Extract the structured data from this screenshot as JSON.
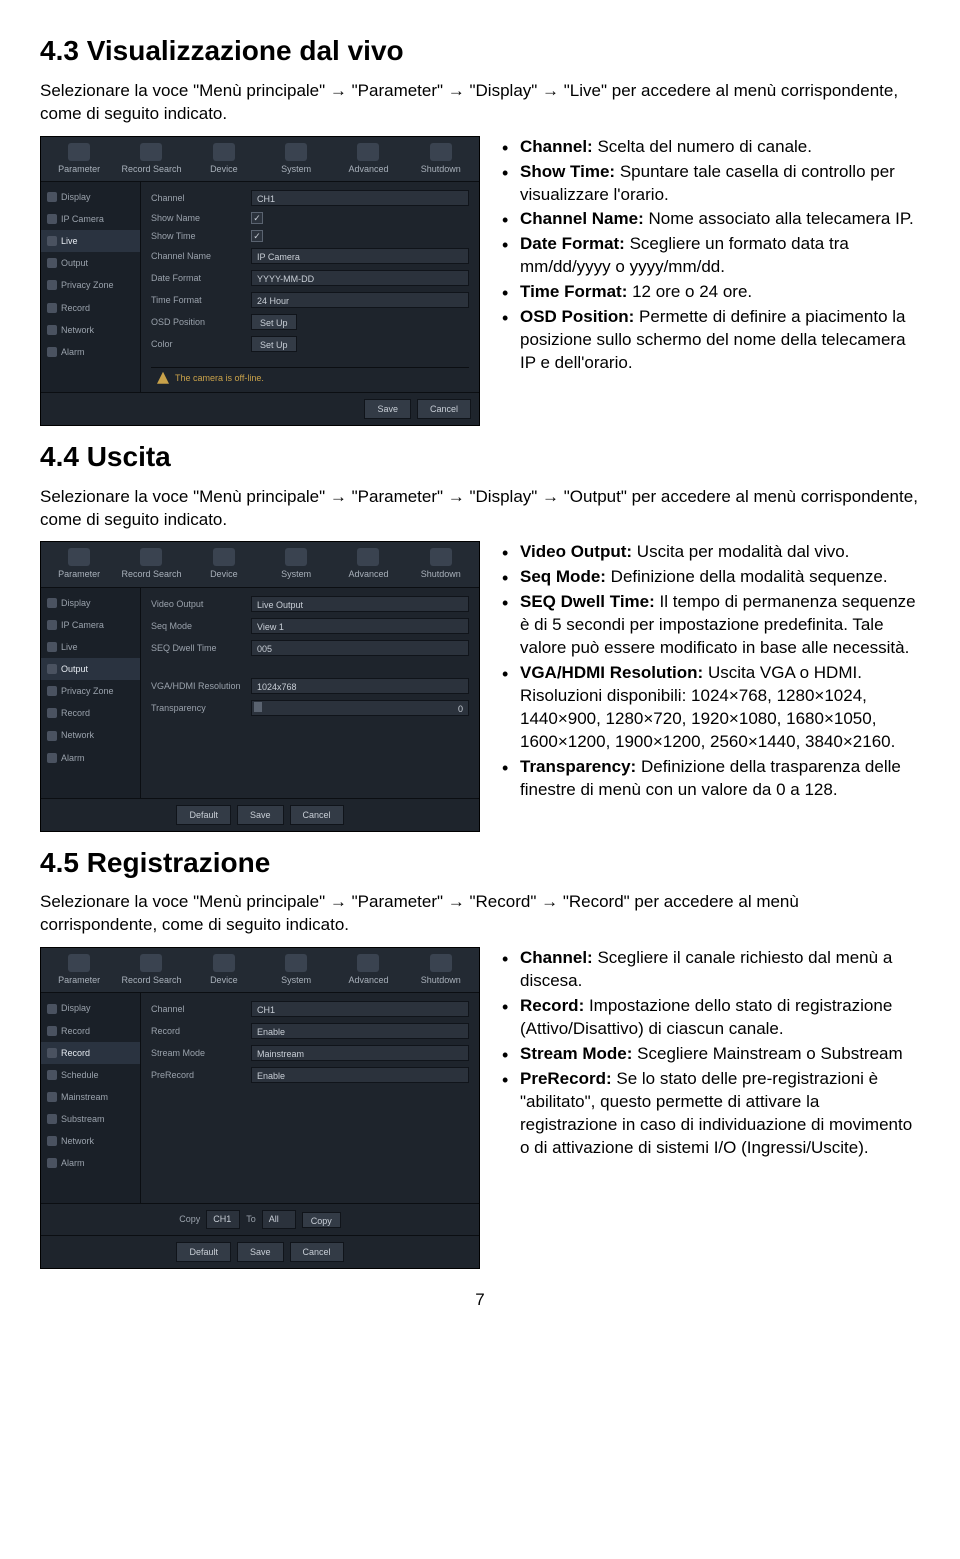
{
  "page_number": "7",
  "sec43": {
    "heading": "4.3 Visualizzazione dal vivo",
    "intro": "Selezionare la voce \"Menù principale\" → \"Parameter\" → \"Display\" → \"Live\" per accedere al menù corrispondente, come di seguito indicato.",
    "bullets": [
      {
        "label": "Channel:",
        "text": " Scelta del numero di canale."
      },
      {
        "label": "Show Time:",
        "text": " Spuntare tale casella di controllo per visualizzare l'orario."
      },
      {
        "label": "Channel Name:",
        "text": " Nome associato alla telecamera IP."
      },
      {
        "label": "Date Format:",
        "text": " Scegliere un formato data tra mm/dd/yyyy o yyyy/mm/dd."
      },
      {
        "label": "Time Format:",
        "text": " 12 ore o 24 ore."
      },
      {
        "label": "OSD Position:",
        "text": " Permette di definire a piacimento la posizione sullo schermo del nome della telecamera IP e dell'orario."
      }
    ],
    "ui": {
      "topbar": [
        "Parameter",
        "Record Search",
        "Device",
        "System",
        "Advanced",
        "Shutdown"
      ],
      "sidebar": [
        {
          "label": "Display",
          "active": false
        },
        {
          "label": "IP Camera",
          "active": false
        },
        {
          "label": "Live",
          "active": true
        },
        {
          "label": "Output",
          "active": false
        },
        {
          "label": "Privacy Zone",
          "active": false
        },
        {
          "label": "Record",
          "active": false
        },
        {
          "label": "Network",
          "active": false
        },
        {
          "label": "Alarm",
          "active": false
        }
      ],
      "rows": [
        {
          "label": "Channel",
          "type": "select",
          "value": "CH1"
        },
        {
          "label": "Show Name",
          "type": "check",
          "checked": true
        },
        {
          "label": "Show Time",
          "type": "check",
          "checked": true
        },
        {
          "label": "Channel Name",
          "type": "input",
          "value": "IP Camera"
        },
        {
          "label": "Date Format",
          "type": "select",
          "value": "YYYY-MM-DD"
        },
        {
          "label": "Time Format",
          "type": "select",
          "value": "24 Hour"
        },
        {
          "label": "OSD Position",
          "type": "button",
          "value": "Set Up"
        },
        {
          "label": "Color",
          "type": "button",
          "value": "Set Up"
        }
      ],
      "status": "The camera is off-line.",
      "footer": [
        "Save",
        "Cancel"
      ]
    }
  },
  "sec44": {
    "heading": "4.4 Uscita",
    "intro": "Selezionare la voce \"Menù principale\" → \"Parameter\" → \"Display\" → \"Output\" per accedere al menù corrispondente, come di seguito indicato.",
    "bullets": [
      {
        "label": "Video Output:",
        "text": " Uscita per modalità dal vivo."
      },
      {
        "label": "Seq Mode:",
        "text": " Definizione della modalità sequenze."
      },
      {
        "label": "SEQ Dwell Time:",
        "text": " Il tempo di permanenza sequenze è di 5 secondi per impostazione predefinita. Tale valore può essere modificato in base alle necessità."
      },
      {
        "label": "VGA/HDMI Resolution:",
        "text": " Uscita VGA o HDMI. Risoluzioni disponibili: 1024×768, 1280×1024, 1440×900, 1280×720, 1920×1080, 1680×1050, 1600×1200, 1900×1200, 2560×1440, 3840×2160."
      },
      {
        "label": "Transparency:",
        "text": " Definizione della trasparenza delle finestre di menù con un valore da 0 a 128."
      }
    ],
    "ui": {
      "topbar": [
        "Parameter",
        "Record Search",
        "Device",
        "System",
        "Advanced",
        "Shutdown"
      ],
      "sidebar": [
        {
          "label": "Display",
          "active": false
        },
        {
          "label": "IP Camera",
          "active": false
        },
        {
          "label": "Live",
          "active": false
        },
        {
          "label": "Output",
          "active": true
        },
        {
          "label": "Privacy Zone",
          "active": false
        },
        {
          "label": "Record",
          "active": false
        },
        {
          "label": "Network",
          "active": false
        },
        {
          "label": "Alarm",
          "active": false
        }
      ],
      "rows": [
        {
          "label": "Video Output",
          "type": "select",
          "value": "Live Output"
        },
        {
          "label": "Seq Mode",
          "type": "select",
          "value": "View 1"
        },
        {
          "label": "SEQ Dwell Time",
          "type": "input",
          "value": "005"
        },
        {
          "label": "",
          "type": "spacer"
        },
        {
          "label": "VGA/HDMI Resolution",
          "type": "select",
          "value": "1024x768"
        },
        {
          "label": "Transparency",
          "type": "slider",
          "value": "0"
        }
      ],
      "footer": [
        "Default",
        "Save",
        "Cancel"
      ]
    }
  },
  "sec45": {
    "heading": "4.5 Registrazione",
    "intro": "Selezionare la voce \"Menù principale\" → \"Parameter\" → \"Record\" → \"Record\" per accedere al menù corrispondente, come di seguito indicato.",
    "bullets": [
      {
        "label": "Channel:",
        "text": " Scegliere il canale richiesto dal menù a discesa."
      },
      {
        "label": "Record:",
        "text": " Impostazione dello stato di registrazione (Attivo/Disattivo) di ciascun canale."
      },
      {
        "label": "Stream Mode:",
        "text": " Scegliere Mainstream o Substream"
      },
      {
        "label": "PreRecord:",
        "text": " Se lo stato delle pre-registrazioni è \"abilitato\", questo permette di attivare la registrazione in caso di individuazione di movimento o di attivazione di sistemi I/O (Ingressi/Uscite)."
      }
    ],
    "ui": {
      "topbar": [
        "Parameter",
        "Record Search",
        "Device",
        "System",
        "Advanced",
        "Shutdown"
      ],
      "sidebar": [
        {
          "label": "Display",
          "active": false
        },
        {
          "label": "Record",
          "active": false
        },
        {
          "label": "Record",
          "active": true
        },
        {
          "label": "Schedule",
          "active": false
        },
        {
          "label": "Mainstream",
          "active": false
        },
        {
          "label": "Substream",
          "active": false
        },
        {
          "label": "Network",
          "active": false
        },
        {
          "label": "Alarm",
          "active": false
        }
      ],
      "rows": [
        {
          "label": "Channel",
          "type": "select",
          "value": "CH1"
        },
        {
          "label": "Record",
          "type": "select",
          "value": "Enable"
        },
        {
          "label": "Stream Mode",
          "type": "select",
          "value": "Mainstream"
        },
        {
          "label": "PreRecord",
          "type": "select",
          "value": "Enable"
        }
      ],
      "copy": {
        "label1": "Copy",
        "val1": "CH1",
        "label2": "To",
        "val2": "All",
        "btn": "Copy"
      },
      "footer": [
        "Default",
        "Save",
        "Cancel"
      ]
    }
  }
}
